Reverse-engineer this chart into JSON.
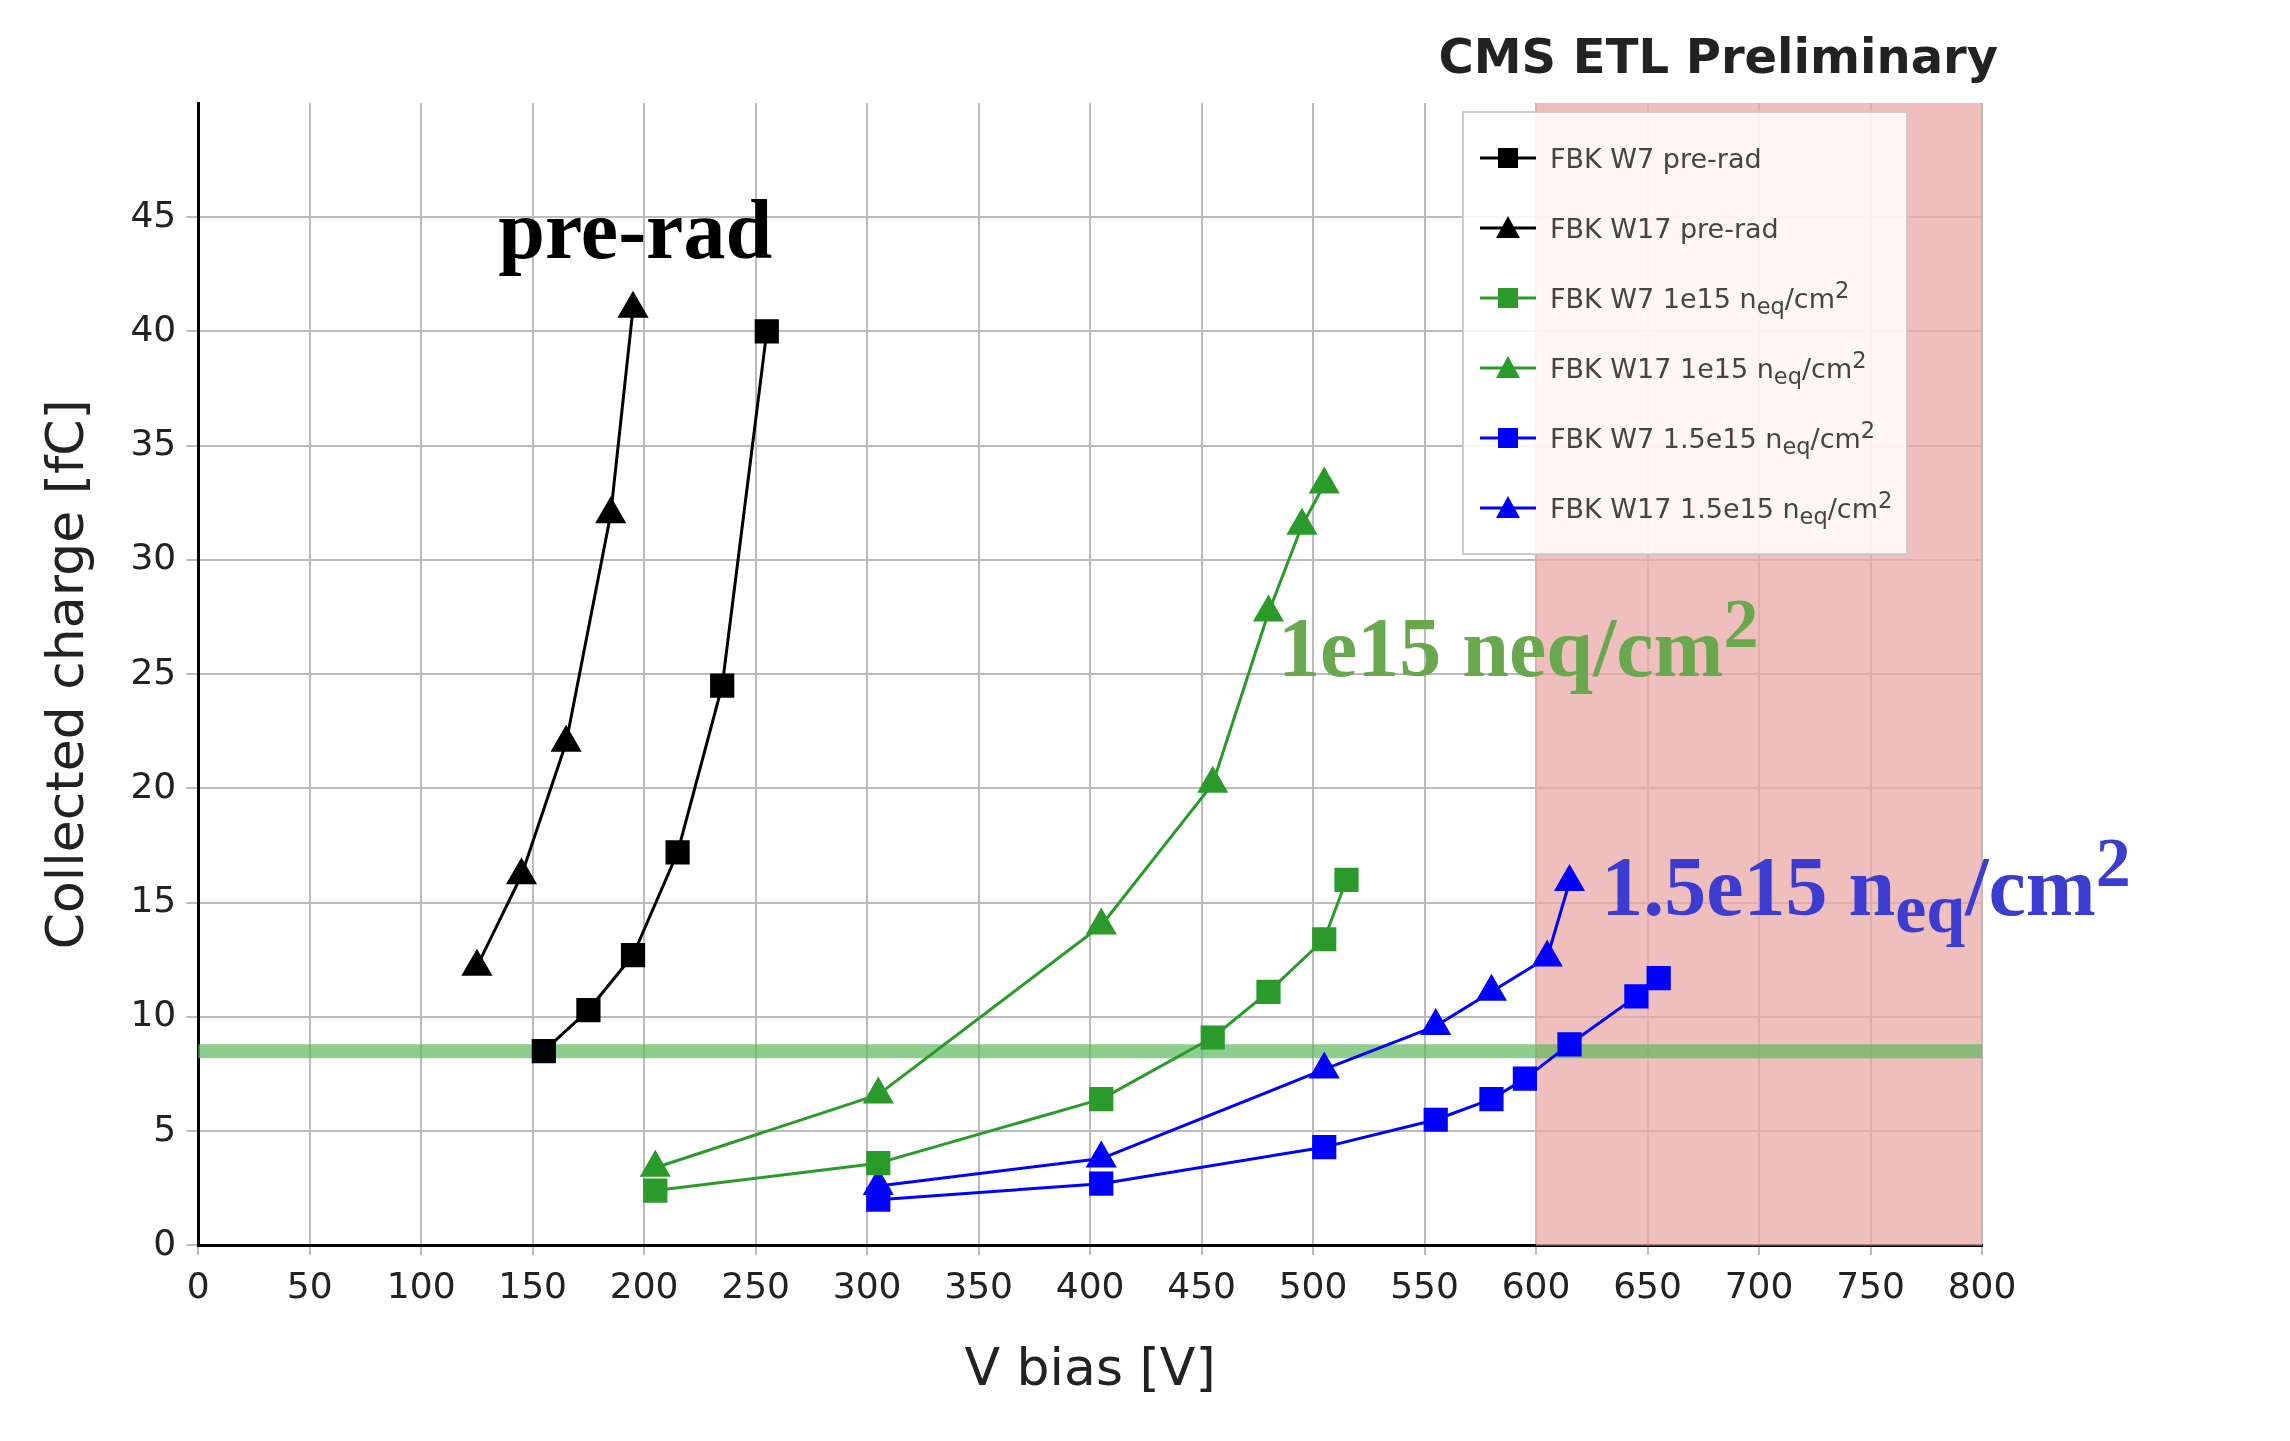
{
  "chart_data": {
    "type": "line",
    "xlabel": "V bias [V]",
    "ylabel": "Collected charge [fC]",
    "xlim": [
      0,
      800
    ],
    "xticks": [
      0,
      50,
      100,
      150,
      200,
      250,
      300,
      350,
      400,
      450,
      500,
      550,
      600,
      650,
      700,
      750,
      800
    ],
    "ylim": [
      0,
      50
    ],
    "yticks": [
      0,
      5,
      10,
      15,
      20,
      25,
      30,
      35,
      40,
      45
    ],
    "grid": true,
    "legend": "top right",
    "series": [
      {
        "name": "FBK W7 pre-rad",
        "color": "#000000",
        "marker": "square",
        "x": [
          155,
          175,
          195,
          215,
          235,
          255
        ],
        "values": [
          8.5,
          10.3,
          12.7,
          17.2,
          24.5,
          40
        ]
      },
      {
        "name": "FBK W17 pre-rad",
        "color": "#000000",
        "marker": "triangle",
        "x": [
          125,
          145,
          165,
          185,
          195
        ],
        "values": [
          12.2,
          16.2,
          22,
          32,
          41
        ]
      },
      {
        "name": "FBK W7 1e15 n$_{eq}$/cm$^{2}$",
        "color": "#2a9a2a",
        "marker": "square",
        "x": [
          205,
          305,
          405,
          455,
          480,
          505,
          515
        ],
        "values": [
          2.4,
          3.6,
          6.4,
          9.1,
          11.1,
          13.4,
          16
        ]
      },
      {
        "name": "FBK W17 1e15 n$_{eq}$/cm$^{2}$",
        "color": "#2a9a2a",
        "marker": "triangle",
        "x": [
          205,
          305,
          405,
          455,
          480,
          495,
          505
        ],
        "values": [
          3.4,
          6.6,
          14,
          20.2,
          27.7,
          31.5,
          33.3
        ]
      },
      {
        "name": "FBK W7 1.5e15 n$_{eq}$/cm$^{2}$",
        "color": "#0000ff",
        "marker": "square",
        "x": [
          305,
          405,
          505,
          555,
          580,
          595,
          615,
          645,
          655
        ],
        "values": [
          2.0,
          2.7,
          4.3,
          5.5,
          6.4,
          7.3,
          8.8,
          10.9,
          11.7
        ]
      },
      {
        "name": "FBK W17 1.5e15 n$_{eq}$/cm$^{2}$",
        "color": "#0000ff",
        "marker": "triangle",
        "x": [
          305,
          405,
          505,
          555,
          580,
          605,
          615
        ],
        "values": [
          2.6,
          3.8,
          7.7,
          9.6,
          11.1,
          12.6,
          15.9
        ]
      }
    ],
    "ref_lines": [
      {
        "axis": "y",
        "value": 8.5,
        "color": "#5cb85c"
      }
    ],
    "bands": [
      {
        "axis": "x",
        "from": 600,
        "to": 800,
        "color": "#e8a9a5"
      }
    ],
    "annotations": [
      "CMS ETL Preliminary",
      "pre-rad",
      "1e15 neq/cm$^{2}$",
      "1.5e15 n$_{eq}$/cm$^{2}$"
    ]
  }
}
